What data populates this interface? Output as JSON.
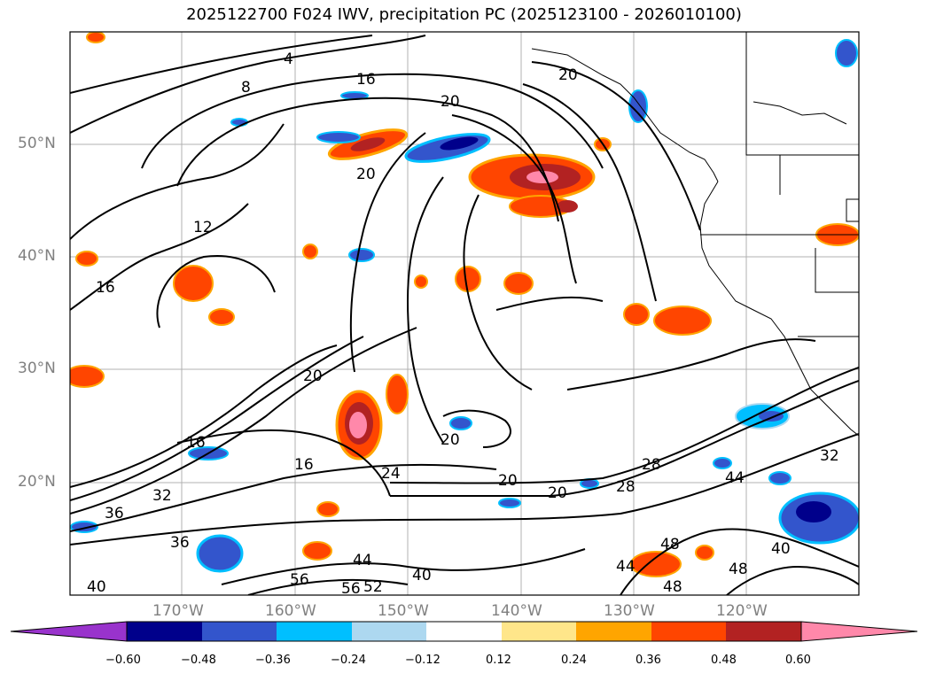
{
  "title": "2025122700 F024 IWV, precipitation PC (2025123100 - 2026010100)",
  "map": {
    "lat_labels": [
      "50°N",
      "40°N",
      "30°N",
      "20°N"
    ],
    "lon_labels": [
      "170°W",
      "160°W",
      "150°W",
      "140°W",
      "130°W",
      "120°W"
    ],
    "contour_labels": [
      "4",
      "8",
      "16",
      "20",
      "20",
      "12",
      "16",
      "16",
      "20",
      "20",
      "32",
      "36",
      "36",
      "16",
      "20",
      "24",
      "28",
      "20",
      "20",
      "28",
      "32",
      "44",
      "40",
      "44",
      "48",
      "48",
      "48",
      "56",
      "56",
      "52",
      "40",
      "44",
      "40"
    ],
    "land_color": "#ffffff",
    "ocean_color": "#ffffff"
  },
  "colorbar": {
    "ticks": [
      "−0.60",
      "−0.48",
      "−0.36",
      "−0.24",
      "−0.12",
      "0.12",
      "0.24",
      "0.36",
      "0.48",
      "0.60"
    ],
    "colors": [
      "#9933cc",
      "#00008b",
      "#3355cc",
      "#00bfff",
      "#add8f0",
      "#ffffff",
      "#ffe68a",
      "#ffa500",
      "#ff4500",
      "#b22222",
      "#ff88aa"
    ]
  }
}
